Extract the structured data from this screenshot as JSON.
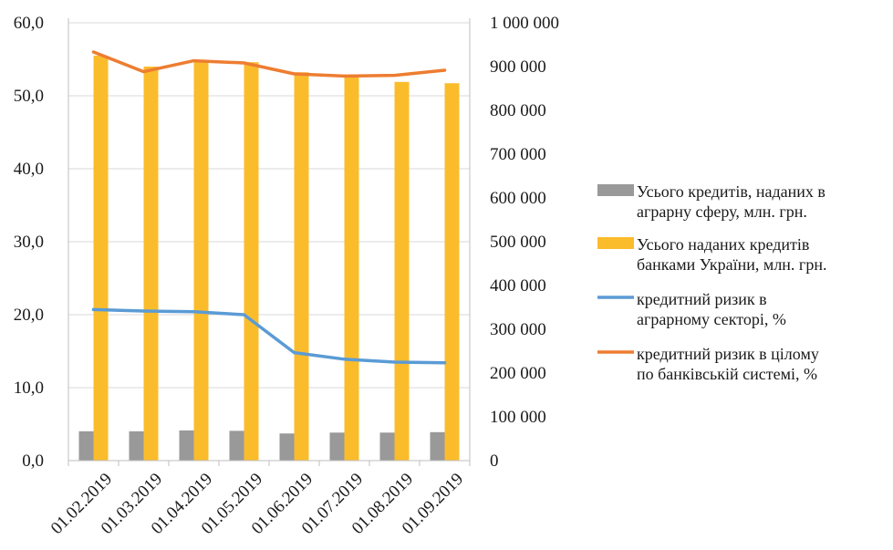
{
  "chart_data": {
    "type": "bar",
    "categories": [
      "01.02.2019",
      "01.03.2019",
      "01.04.2019",
      "01.05.2019",
      "01.06.2019",
      "01.07.2019",
      "01.08.2019",
      "01.09.2019"
    ],
    "left_axis": {
      "ylim": [
        0,
        60
      ],
      "ticks": [
        "0,0",
        "10,0",
        "20,0",
        "30,0",
        "40,0",
        "50,0",
        "60,0"
      ]
    },
    "right_axis": {
      "ylim": [
        0,
        1000000
      ],
      "ticks": [
        "0",
        "100 000",
        "200 000",
        "300 000",
        "400 000",
        "500 000",
        "600 000",
        "700 000",
        "800 000",
        "900 000",
        "1 000 000"
      ]
    },
    "grid": true,
    "legend_position": "right",
    "series": [
      {
        "name_lines": [
          "Усього кредитів, наданих в",
          "аграрну сферу, млн. грн."
        ],
        "kind": "bar",
        "axis": "right",
        "color": "#999999",
        "values": [
          67000,
          67000,
          69000,
          68000,
          62000,
          64000,
          64000,
          65000
        ]
      },
      {
        "name_lines": [
          "Усього наданих кредитів",
          "банками України, млн. грн."
        ],
        "kind": "bar",
        "axis": "right",
        "color": "#FBBC2C",
        "values": [
          925000,
          900000,
          915000,
          910000,
          887000,
          882000,
          865000,
          862000
        ]
      },
      {
        "name_lines": [
          "кредитний ризик в",
          "аграрному секторі, %"
        ],
        "kind": "line",
        "axis": "left",
        "color": "#5B9BD5",
        "values": [
          20.7,
          20.5,
          20.4,
          20.0,
          14.8,
          13.9,
          13.5,
          13.4
        ]
      },
      {
        "name_lines": [
          "кредитний ризик в цілому",
          "по банківській системі, %"
        ],
        "kind": "line",
        "axis": "left",
        "color": "#ED7D31",
        "values": [
          56.0,
          53.3,
          54.8,
          54.5,
          53.0,
          52.7,
          52.8,
          53.5
        ]
      }
    ]
  }
}
